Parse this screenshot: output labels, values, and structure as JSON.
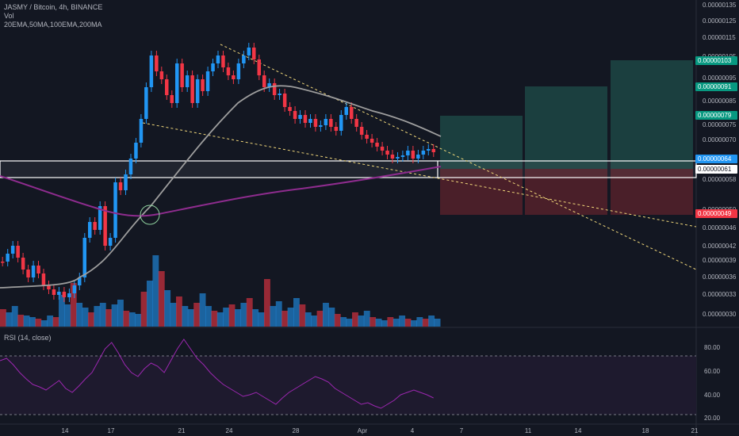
{
  "header": {
    "symbol_line": "JASMY / Bitcoin, 4h, BINANCE",
    "volume_label": "Vol",
    "ema_label": "20EMA,50MA,100EMA,200MA"
  },
  "rsi": {
    "label": "RSI (14, close)",
    "upper_band": 70,
    "lower_band": 30,
    "ticks": [
      "80.00",
      "60.00",
      "40.00",
      "20.00"
    ]
  },
  "price_axis": {
    "ticks": [
      "0.00000135",
      "0.00000125",
      "0.00000115",
      "0.00000105",
      "0.00000095",
      "0.00000085",
      "0.00000075",
      "0.00000070",
      "0.00000058",
      "0.00000050",
      "0.00000046",
      "0.00000042",
      "0.00000039",
      "0.00000036",
      "0.00000033",
      "0.00000030"
    ]
  },
  "price_tags": {
    "target_3": "0.00000103",
    "target_2": "0.00000091",
    "target_1": "0.00000079",
    "current": "0.00000064",
    "entry": "0.00000061",
    "stop": "0.00000049"
  },
  "time_axis": {
    "ticks": [
      "14",
      "17",
      "21",
      "24",
      "28",
      "Apr",
      "4",
      "7",
      "11",
      "14",
      "18",
      "21"
    ]
  },
  "colors": {
    "background": "#131722",
    "up": "#2196f3",
    "down": "#f23645",
    "target_fill": "#1b3f3f",
    "stop_fill": "#4a1f29",
    "ma_grey": "#9e9e9e",
    "ma_purple": "#8e2c8e",
    "trend_line": "#f0d77a",
    "rsi_line": "#9c27b0",
    "tag_green": "#089981",
    "tag_blue": "#2196f3",
    "tag_red": "#f23645"
  },
  "chart_data": {
    "type": "candlestick",
    "title": "JASMY / Bitcoin, 4h, BINANCE",
    "ylim": [
      2.9e-07,
      1.38e-06
    ]
  }
}
